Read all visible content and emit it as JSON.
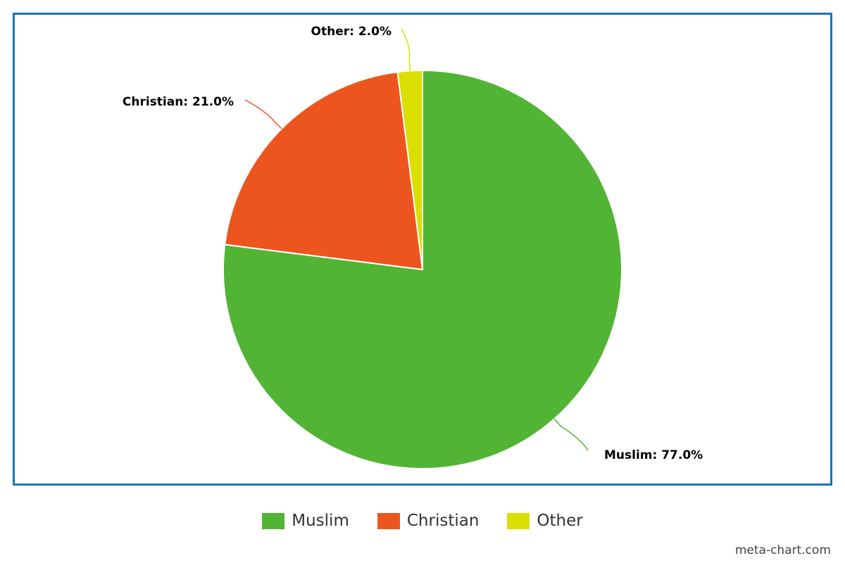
{
  "chart_data": {
    "type": "pie",
    "categories": [
      "Muslim",
      "Christian",
      "Other"
    ],
    "values": [
      77.0,
      21.0,
      2.0
    ],
    "labels": [
      "Muslim: 77.0%",
      "Christian: 21.0%",
      "Other: 2.0%"
    ],
    "colors": [
      "#52b435",
      "#ec561e",
      "#dbdf00"
    ],
    "start_angle": "12 o'clock",
    "direction": "clockwise",
    "legend_position": "bottom-center"
  },
  "legend": {
    "items": [
      {
        "label": "Muslim",
        "color": "#52b435"
      },
      {
        "label": "Christian",
        "color": "#ec561e"
      },
      {
        "label": "Other",
        "color": "#dbdf00"
      }
    ]
  },
  "frame_color": "#1a73bb",
  "credit": "meta-chart.com"
}
